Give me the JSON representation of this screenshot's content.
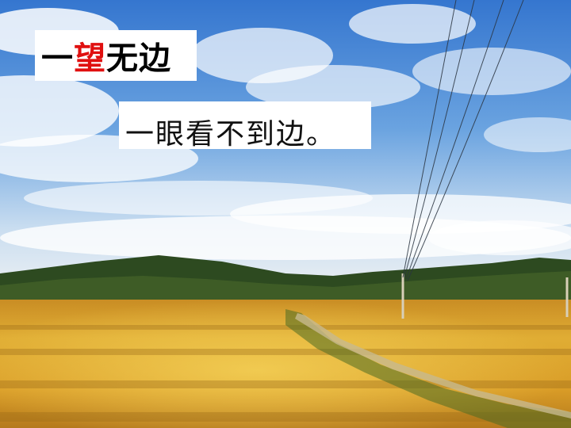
{
  "title": {
    "char1": "一",
    "char2": "望",
    "rest": "无边",
    "highlight_color": "#e01010"
  },
  "definition": {
    "text": "一眼看不到边。"
  },
  "colors": {
    "sky_top": "#3d7fd6",
    "sky_bottom": "#dfeaf5",
    "field_gold": "#d9a62b",
    "hills": "#2f4a1e"
  }
}
